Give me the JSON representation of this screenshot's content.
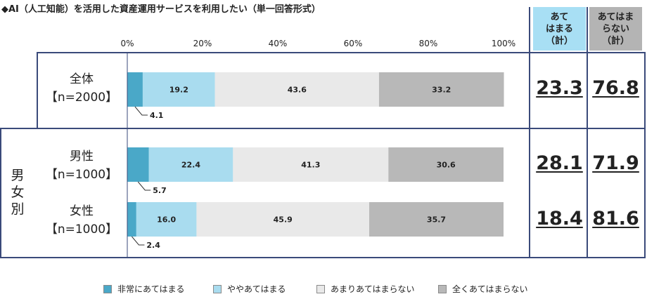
{
  "title": "◆AI（人工知能）を活用した資産運用サービスを利用したい（単一回答形式）",
  "headers": {
    "agree_total": "あて\nはまる\n（計）",
    "disagree_total": "あてはま\nらない\n（計）"
  },
  "group_label": "男\n女\n別",
  "rows": [
    {
      "label": "全体",
      "n": "【n=2000】",
      "agree_total": "23.3",
      "disagree_total": "76.8"
    },
    {
      "label": "男性",
      "n": "【n=1000】",
      "agree_total": "28.1",
      "disagree_total": "71.9"
    },
    {
      "label": "女性",
      "n": "【n=1000】",
      "agree_total": "18.4",
      "disagree_total": "81.6"
    }
  ],
  "legend": [
    "非常にあてはまる",
    "ややあてはまる",
    "あまりあてはまらない",
    "全くあてはまらない"
  ],
  "colors": [
    "#4aa8c8",
    "#a9dcef",
    "#e9e9e9",
    "#b8b8b8"
  ],
  "chart_data": {
    "type": "bar",
    "orientation": "horizontal",
    "stacked": true,
    "categories": [
      "全体【n=2000】",
      "男性【n=1000】",
      "女性【n=1000】"
    ],
    "series": [
      {
        "name": "非常にあてはまる",
        "values": [
          4.1,
          5.7,
          2.4
        ]
      },
      {
        "name": "ややあてはまる",
        "values": [
          19.2,
          22.4,
          16.0
        ]
      },
      {
        "name": "あまりあてはまらない",
        "values": [
          43.6,
          41.3,
          45.9
        ]
      },
      {
        "name": "全くあてはまらない",
        "values": [
          33.2,
          30.6,
          35.7
        ]
      }
    ],
    "xlim": [
      0,
      100
    ],
    "ticks": [
      "0%",
      "20%",
      "40%",
      "60%",
      "80%",
      "100%"
    ],
    "legend_position": "bottom"
  }
}
